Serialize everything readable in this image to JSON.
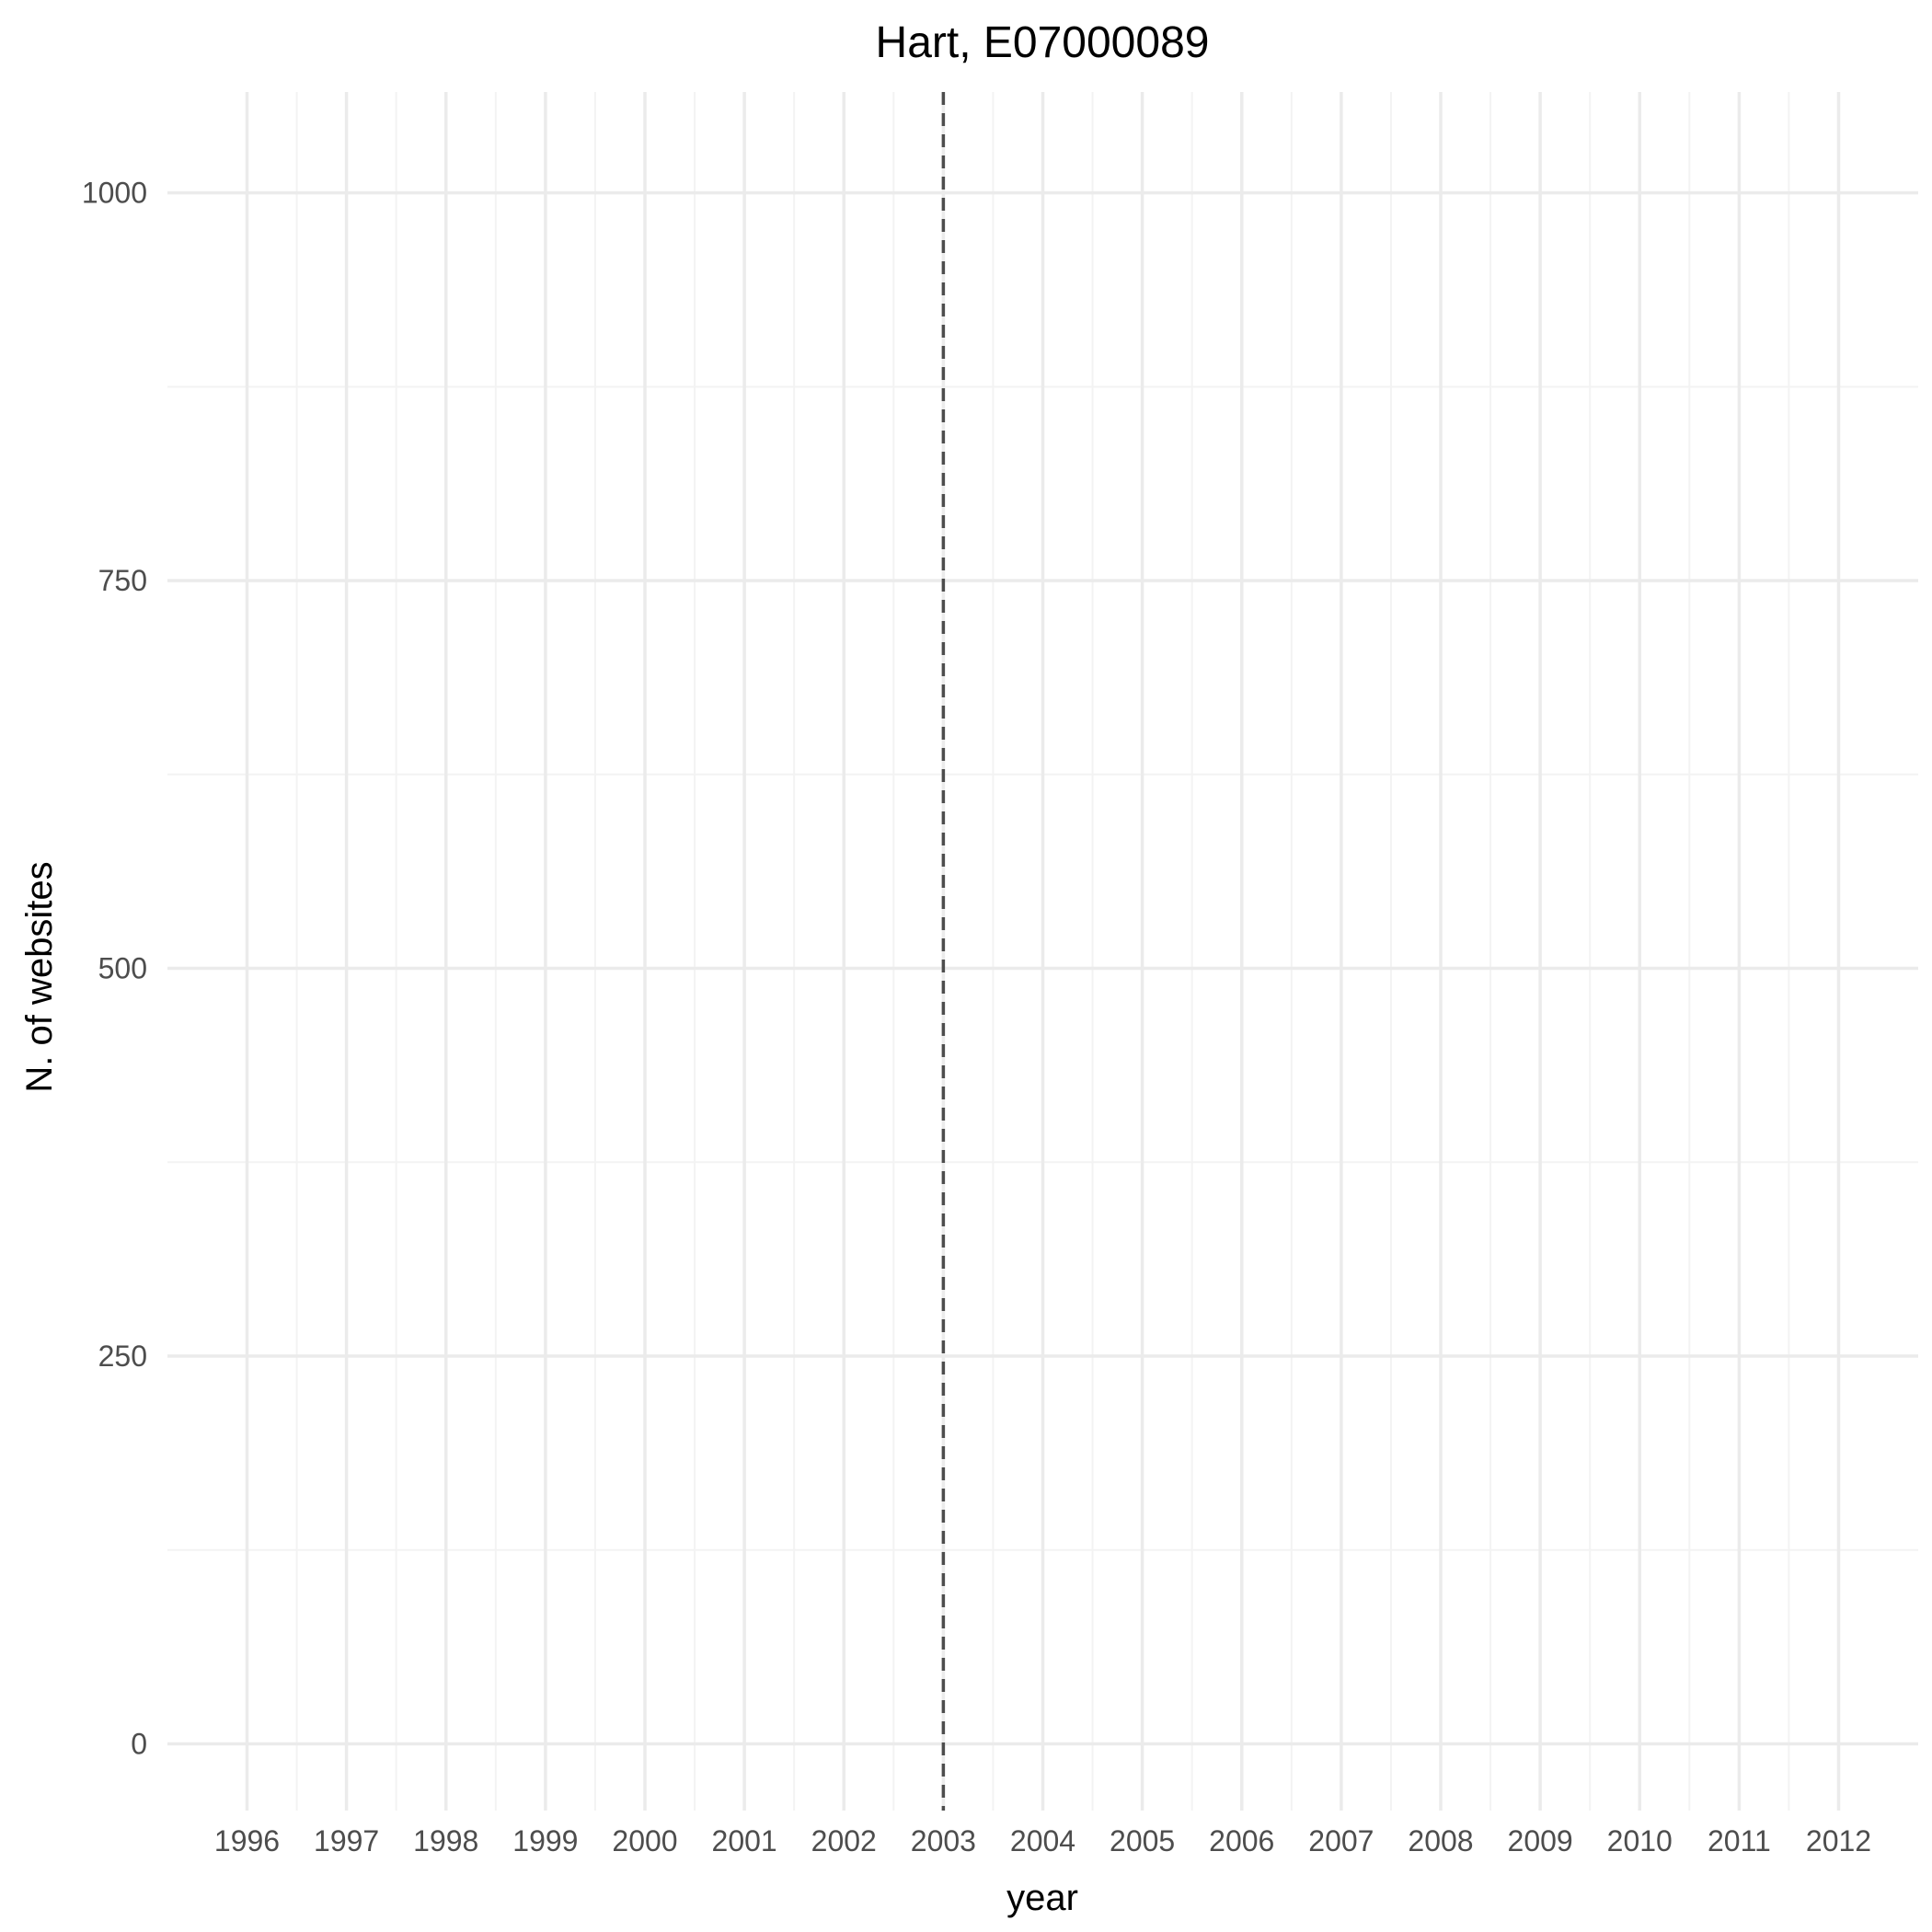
{
  "chart_data": {
    "type": "line",
    "title": "Hart, E07000089",
    "xlabel": "year",
    "ylabel": "N. of websites",
    "x_ticks": [
      "1996",
      "1997",
      "1998",
      "1999",
      "2000",
      "2001",
      "2002",
      "2003",
      "2004",
      "2005",
      "2006",
      "2007",
      "2008",
      "2009",
      "2010",
      "2011",
      "2012"
    ],
    "y_ticks": [
      "0",
      "250",
      "500",
      "750",
      "1000"
    ],
    "xlim": [
      1995.2,
      2012.8
    ],
    "ylim": [
      -43,
      1065
    ],
    "series": [],
    "reference_line": {
      "x": 2003,
      "style": "dashed",
      "color": "#4d4d4d"
    },
    "grid": true,
    "legend": "none",
    "colors": {
      "grid_major": "#ebebeb",
      "grid_minor": "#f3f3f3",
      "reference": "#4d4d4d",
      "text": "#4d4d4d"
    }
  }
}
